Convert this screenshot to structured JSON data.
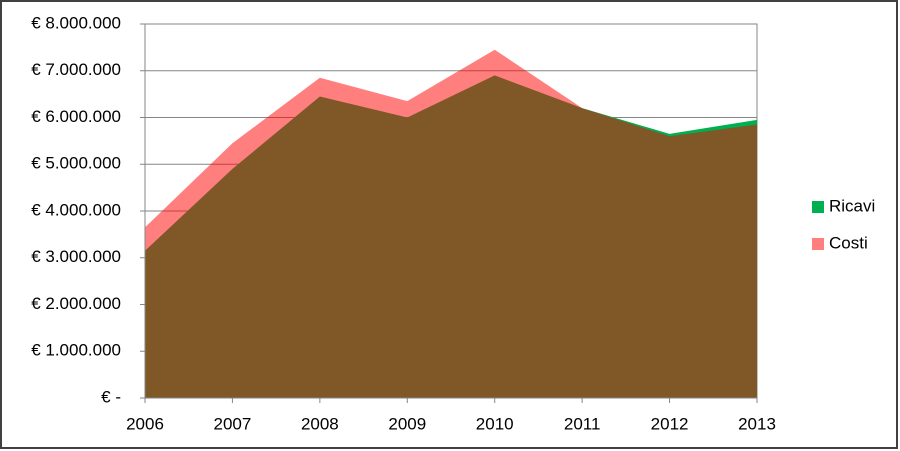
{
  "chart_data": {
    "type": "area",
    "categories": [
      "2006",
      "2007",
      "2008",
      "2009",
      "2010",
      "2011",
      "2012",
      "2013"
    ],
    "series": [
      {
        "name": "Ricavi",
        "color": "#00b050",
        "opacity": 1,
        "values": [
          3150000,
          4900000,
          6450000,
          6000000,
          6900000,
          6200000,
          5650000,
          5950000
        ]
      },
      {
        "name": "Costi",
        "color": "#ff0000",
        "opacity": 0.5,
        "values": [
          3650000,
          5450000,
          6850000,
          6350000,
          7450000,
          6200000,
          5600000,
          5850000
        ]
      }
    ],
    "ylim": [
      0,
      8000000
    ],
    "yticks": [
      {
        "value": 0,
        "label": "€ -"
      },
      {
        "value": 1000000,
        "label": "€ 1.000.000"
      },
      {
        "value": 2000000,
        "label": "€ 2.000.000"
      },
      {
        "value": 3000000,
        "label": "€ 3.000.000"
      },
      {
        "value": 4000000,
        "label": "€ 4.000.000"
      },
      {
        "value": 5000000,
        "label": "€ 5.000.000"
      },
      {
        "value": 6000000,
        "label": "€ 6.000.000"
      },
      {
        "value": 7000000,
        "label": "€ 7.000.000"
      },
      {
        "value": 8000000,
        "label": "€ 8.000.000"
      }
    ],
    "grid": true,
    "legend": "right"
  }
}
